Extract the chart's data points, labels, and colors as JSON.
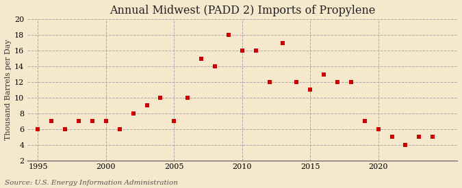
{
  "title": "Annual Midwest (PADD 2) Imports of Propylene",
  "ylabel": "Thousand Barrels per Day",
  "source": "Source: U.S. Energy Information Administration",
  "background_color": "#f5e8cc",
  "plot_background_color": "#f5e8cc",
  "marker_color": "#cc0000",
  "marker": "s",
  "marker_size": 18,
  "xlim": [
    1994.2,
    2025.8
  ],
  "ylim": [
    2,
    20
  ],
  "yticks": [
    2,
    4,
    6,
    8,
    10,
    12,
    14,
    16,
    18,
    20
  ],
  "xticks": [
    1995,
    2000,
    2005,
    2010,
    2015,
    2020
  ],
  "grid_color": "#aaaaaa",
  "years": [
    1995,
    1996,
    1997,
    1998,
    1999,
    2000,
    2001,
    2002,
    2003,
    2004,
    2005,
    2006,
    2007,
    2008,
    2009,
    2010,
    2011,
    2012,
    2013,
    2014,
    2015,
    2016,
    2017,
    2018,
    2019,
    2020,
    2021,
    2022,
    2023,
    2024
  ],
  "values": [
    6.0,
    7.0,
    6.0,
    7.0,
    7.0,
    7.0,
    6.0,
    8.0,
    9.0,
    10.0,
    7.0,
    10.0,
    15.0,
    14.0,
    18.0,
    16.0,
    16.0,
    12.0,
    17.0,
    12.0,
    11.0,
    13.0,
    12.0,
    12.0,
    7.0,
    6.0,
    5.0,
    4.0,
    5.0,
    5.0
  ],
  "title_fontsize": 11.5,
  "ylabel_fontsize": 8,
  "source_fontsize": 7.5,
  "tick_fontsize": 8
}
